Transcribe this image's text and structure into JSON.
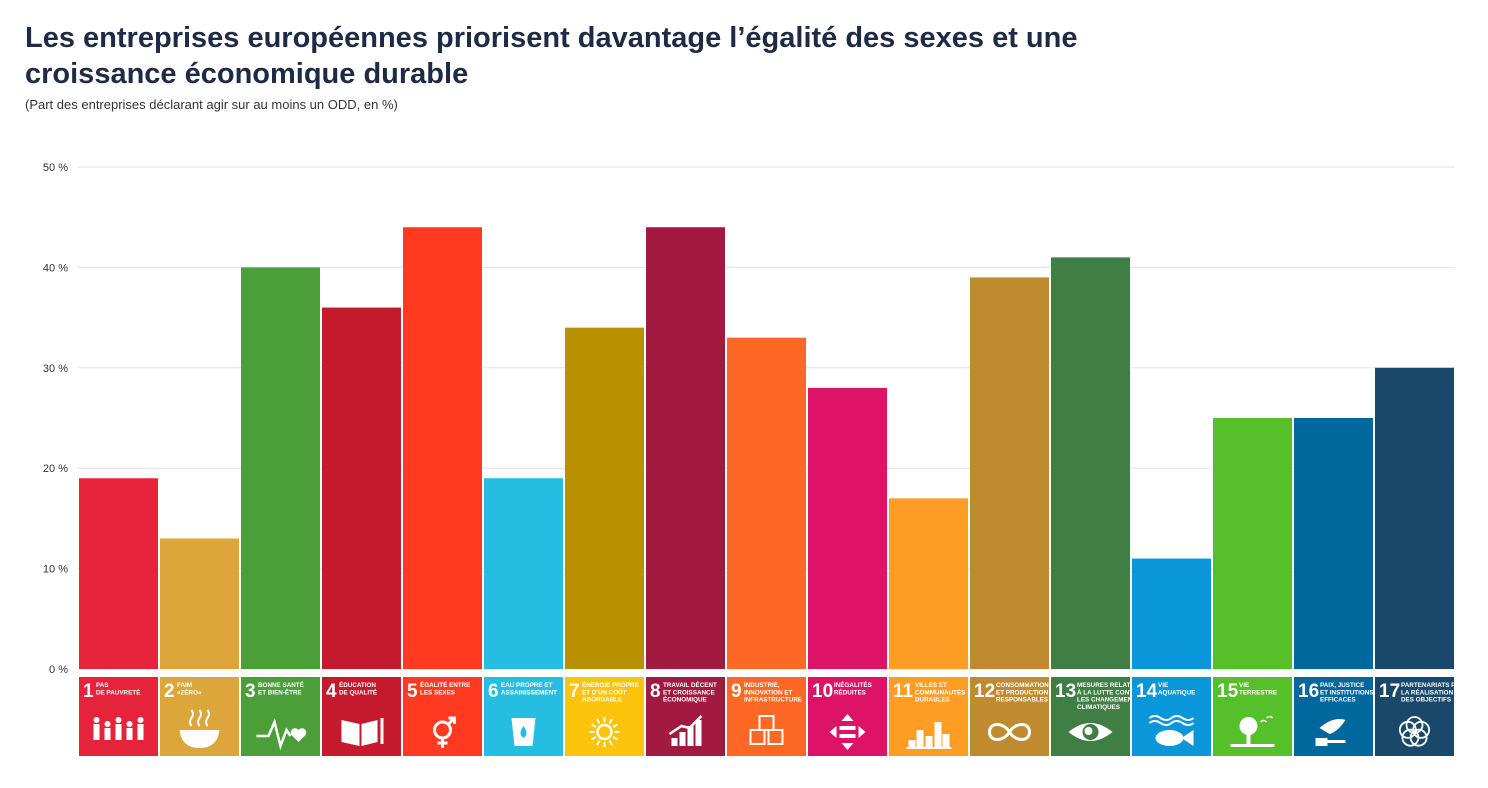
{
  "chart_data": {
    "type": "bar",
    "title": "Les entreprises européennes priorisent davantage l’égalité des sexes et une croissance économique durable",
    "subtitle": "(Part des entreprises déclarant agir sur au moins un ODD, en %)",
    "ylim": [
      0,
      50
    ],
    "yticks": [
      {
        "value": 0,
        "label": "0 %"
      },
      {
        "value": 10,
        "label": "10 %"
      },
      {
        "value": 20,
        "label": "20 %"
      },
      {
        "value": 30,
        "label": "30 %"
      },
      {
        "value": 40,
        "label": "40 %"
      },
      {
        "value": 50,
        "label": "50 %"
      }
    ],
    "grid": true,
    "categories": [
      {
        "num": "1",
        "lines": [
          "PAS",
          "DE PAUVRETÉ"
        ],
        "icon": "family-icon",
        "color": "#e5243b",
        "value": 19
      },
      {
        "num": "2",
        "lines": [
          "FAIM",
          "«ZÉRO»"
        ],
        "icon": "bowl-icon",
        "color": "#dda63a",
        "value": 13
      },
      {
        "num": "3",
        "lines": [
          "BONNE SANTÉ",
          "ET BIEN-ÊTRE"
        ],
        "icon": "heartbeat-icon",
        "color": "#4c9f38",
        "value": 40
      },
      {
        "num": "4",
        "lines": [
          "ÉDUCATION",
          "DE QUALITÉ"
        ],
        "icon": "book-icon",
        "color": "#c5192d",
        "value": 36
      },
      {
        "num": "5",
        "lines": [
          "ÉGALITÉ ENTRE",
          "LES SEXES"
        ],
        "icon": "gender-icon",
        "color": "#ff3a21",
        "value": 44
      },
      {
        "num": "6",
        "lines": [
          "EAU PROPRE ET",
          "ASSAINISSEMENT"
        ],
        "icon": "water-icon",
        "color": "#26bde2",
        "value": 19
      },
      {
        "num": "7",
        "lines": [
          "ÉNERGIE PROPRE",
          "ET D'UN COÛT",
          "ABORDABLE"
        ],
        "icon": "sun-icon",
        "color": "#b89000",
        "tile_color": "#fcc30b",
        "value": 34
      },
      {
        "num": "8",
        "lines": [
          "TRAVAIL DÉCENT",
          "ET CROISSANCE",
          "ÉCONOMIQUE"
        ],
        "icon": "growth-icon",
        "color": "#a21942",
        "value": 44
      },
      {
        "num": "9",
        "lines": [
          "INDUSTRIE,",
          "INNOVATION ET",
          "INFRASTRUCTURE"
        ],
        "icon": "cubes-icon",
        "color": "#fd6925",
        "value": 33
      },
      {
        "num": "10",
        "lines": [
          "INÉGALITÉS",
          "RÉDUITES"
        ],
        "icon": "equal-icon",
        "color": "#dd1367",
        "value": 28
      },
      {
        "num": "11",
        "lines": [
          "VILLES ET",
          "COMMUNAUTÉS",
          "DURABLES"
        ],
        "icon": "city-icon",
        "color": "#fd9d24",
        "value": 17
      },
      {
        "num": "12",
        "lines": [
          "CONSOMMATION",
          "ET PRODUCTION",
          "RESPONSABLES"
        ],
        "icon": "infinity-icon",
        "color": "#bf8b2e",
        "value": 39
      },
      {
        "num": "13",
        "lines": [
          "MESURES RELATIVES",
          "À LA LUTTE CONTRE",
          "LES CHANGEMENTS",
          "CLIMATIQUES"
        ],
        "icon": "eye-globe-icon",
        "color": "#3f7e44",
        "value": 41
      },
      {
        "num": "14",
        "lines": [
          "VIE",
          "AQUATIQUE"
        ],
        "icon": "fish-icon",
        "color": "#0a97d9",
        "value": 11
      },
      {
        "num": "15",
        "lines": [
          "VIE",
          "TERRESTRE"
        ],
        "icon": "tree-icon",
        "color": "#56c02b",
        "value": 25
      },
      {
        "num": "16",
        "lines": [
          "PAIX, JUSTICE",
          "ET INSTITUTIONS",
          "EFFICACES"
        ],
        "icon": "dove-icon",
        "color": "#00689d",
        "value": 25
      },
      {
        "num": "17",
        "lines": [
          "PARTENARIATS POUR",
          "LA RÉALISATION",
          "DES OBJECTIFS"
        ],
        "icon": "rings-icon",
        "color": "#19486a",
        "value": 30
      }
    ]
  }
}
